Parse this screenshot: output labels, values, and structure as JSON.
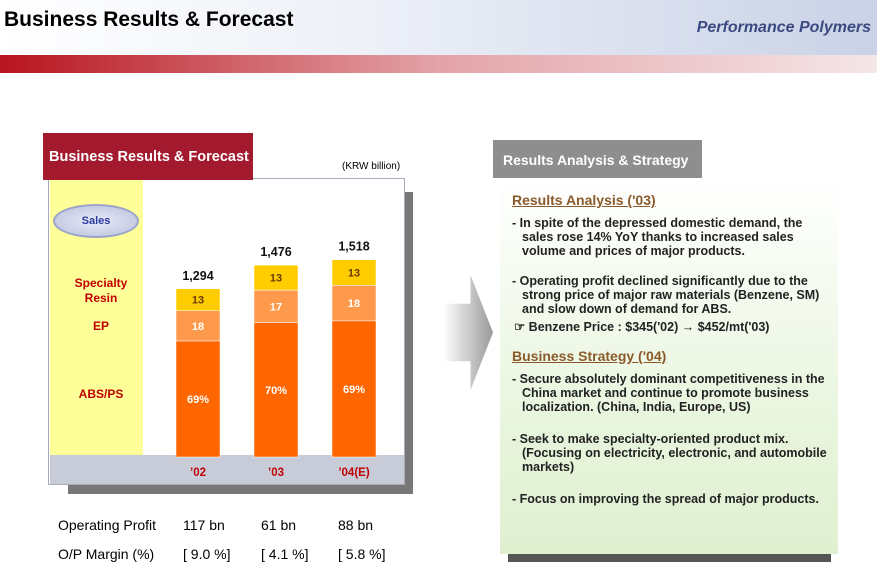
{
  "header": {
    "title": "Business Results & Forecast",
    "section": "Performance Polymers"
  },
  "chart_data": {
    "type": "bar",
    "stacked": true,
    "title": "Business Results & Forecast",
    "unit": "(KRW billion)",
    "legend_label": "Sales",
    "categories": [
      "’02",
      "’03",
      "’04(E)"
    ],
    "totals": {
      "values": [
        1294,
        1476,
        1518
      ],
      "value_labels": [
        "1,294",
        "1,476",
        "1,518"
      ]
    },
    "series": [
      {
        "name": "ABS/PS",
        "color": "#ff6600",
        "values": [
          69,
          70,
          69
        ],
        "value_labels": [
          "69%",
          "70%",
          "69%"
        ]
      },
      {
        "name": "EP",
        "color": "#ff9a4d",
        "values": [
          18,
          17,
          18
        ]
      },
      {
        "name": "Specialty Resin",
        "color": "#ffcc00",
        "values": [
          13,
          13,
          13
        ]
      }
    ]
  },
  "results_table": {
    "rows": [
      [
        "Operating Profit",
        "117 bn",
        "61 bn",
        "88 bn"
      ],
      [
        "O/P Margin (%)",
        "[ 9.0 %]",
        "[ 4.1 %]",
        "[ 5.8 %]"
      ]
    ]
  },
  "analysis": {
    "title": "Results Analysis & Strategy",
    "sections": [
      {
        "heading": "Results Analysis ('03)",
        "items": [
          "- In spite of the depressed domestic demand, the sales rose 14% YoY thanks to increased sales volume and prices of major products.",
          "- Operating profit declined significantly due to the strong price of major raw materials (Benzene, SM) and slow down of demand for ABS."
        ],
        "note": "☞ Benzene Price :  $345('02) → $452/mt('03)"
      },
      {
        "heading": "Business Strategy ('04)",
        "items": [
          "- Secure absolutely dominant competitiveness in the China market  and continue to promote business localization. (China, India, Europe, US)",
          "- Seek to make specialty-oriented product mix. (Focusing on electricity, electronic, and automobile markets)",
          "- Focus on improving the spread of major products."
        ]
      }
    ]
  }
}
